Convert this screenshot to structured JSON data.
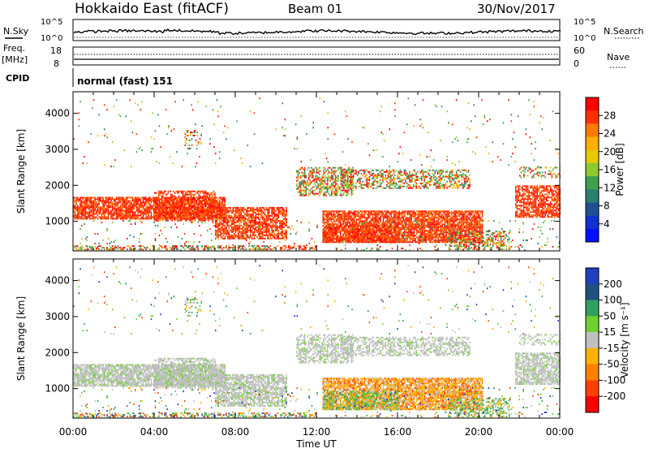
{
  "header": {
    "title": "Hokkaido East (fitACF)",
    "beam": "Beam 01",
    "date": "30/Nov/2017"
  },
  "top_panels": {
    "nsky": {
      "label": "N.Sky",
      "left_ticks": [
        "10^5",
        "10^0"
      ],
      "right_ticks": [
        "10^5",
        "10^0"
      ],
      "right_label": "N.Search"
    },
    "freq": {
      "label_line1": "Freq.",
      "label_line2": "[MHz]",
      "left_ticks": [
        "18",
        "8"
      ],
      "right_ticks": [
        "60",
        "0"
      ],
      "right_label": "Nave"
    },
    "cpid": {
      "label": "CPID",
      "text": "normal (fast) 151"
    }
  },
  "chart_data": [
    {
      "type": "heatmap",
      "name": "power",
      "xlabel": "",
      "ylabel": "Slant Range [km]",
      "xlim_hours": [
        0,
        24
      ],
      "ylim_km": [
        180,
        4600
      ],
      "y_ticks": [
        1000,
        2000,
        3000,
        4000
      ],
      "colorbar": {
        "label": "Power [dB]",
        "tick_labels": [
          "28",
          "24",
          "20",
          "16",
          "12",
          "8",
          "4"
        ],
        "colors": [
          "#ff0000",
          "#ff3000",
          "#ff7a00",
          "#ffb000",
          "#e8c800",
          "#90c830",
          "#40a050",
          "#2a8070",
          "#205090",
          "#1030d0",
          "#0010ff"
        ]
      },
      "dominant_color": "#ff2000"
    },
    {
      "type": "heatmap",
      "name": "velocity",
      "xlabel": "Time UT",
      "ylabel": "Slant Range [km]",
      "xlim_hours": [
        0,
        24
      ],
      "ylim_km": [
        180,
        4600
      ],
      "y_ticks": [
        1000,
        2000,
        3000,
        4000
      ],
      "x_tick_labels": [
        "00:00",
        "04:00",
        "08:00",
        "12:00",
        "16:00",
        "20:00",
        "00:00"
      ],
      "colorbar": {
        "label": "Velocity [m s⁻¹]",
        "tick_labels": [
          "200",
          "100",
          "50",
          "15",
          "-15",
          "-50",
          "-100",
          "-200"
        ],
        "colors": [
          "#2040c0",
          "#205080",
          "#30a060",
          "#70d030",
          "#c0c0c0",
          "#ffb000",
          "#ff8000",
          "#ff4000",
          "#ff0000"
        ]
      },
      "dominant_color": "#c0c0c0"
    }
  ]
}
